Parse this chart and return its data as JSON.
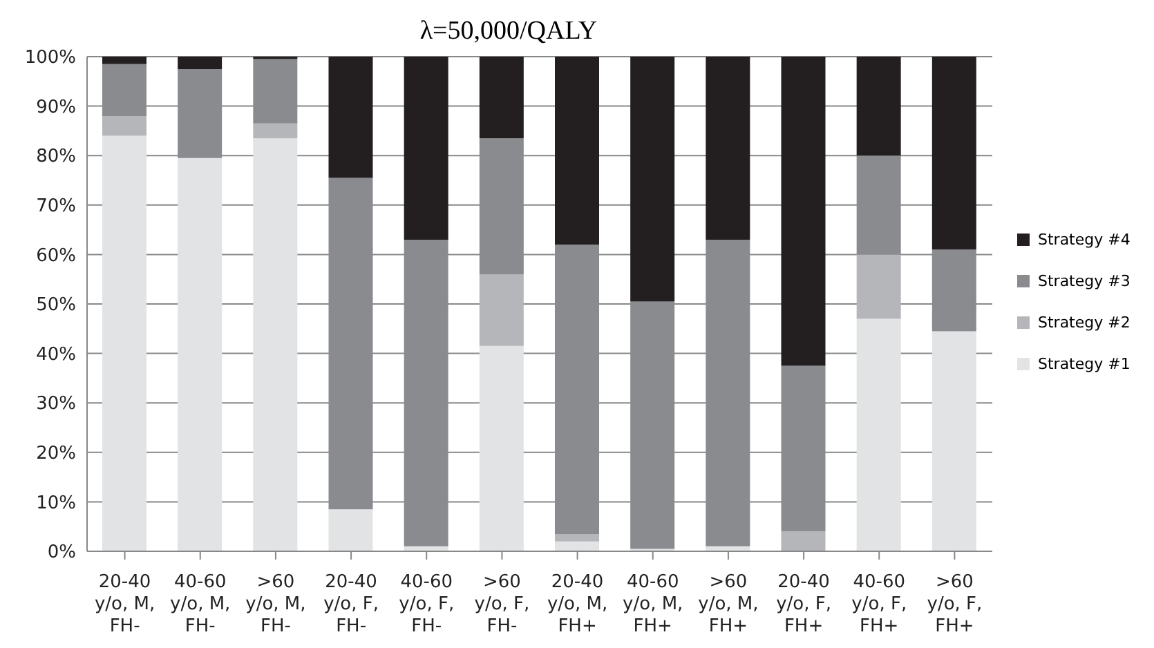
{
  "chart_data": {
    "type": "bar",
    "title": "λ=50,000/QALY",
    "stacked": true,
    "grid": "y",
    "legend": "right",
    "categories": [
      "20-40 y/o, M, FH-",
      "40-60 y/o, M, FH-",
      ">60 y/o, M, FH-",
      "20-40 y/o, F, FH-",
      "40-60 y/o, F, FH-",
      ">60 y/o, F, FH-",
      "20-40 y/o, M, FH+",
      "40-60 y/o, M, FH+",
      ">60 y/o, M, FH+",
      "20-40 y/o, F, FH+",
      "40-60 y/o, F, FH+",
      ">60 y/o, F, FH+"
    ],
    "ylim": [
      0,
      100
    ],
    "yticks": [
      {
        "value": 0,
        "label": "0%"
      },
      {
        "value": 10,
        "label": "10%"
      },
      {
        "value": 20,
        "label": "20%"
      },
      {
        "value": 30,
        "label": "30%"
      },
      {
        "value": 40,
        "label": "40%"
      },
      {
        "value": 50,
        "label": "50%"
      },
      {
        "value": 60,
        "label": "60%"
      },
      {
        "value": 70,
        "label": "70%"
      },
      {
        "value": 80,
        "label": "80%"
      },
      {
        "value": 90,
        "label": "90%"
      },
      {
        "value": 100,
        "label": "100%"
      }
    ],
    "series": [
      {
        "name": "Strategy #1",
        "color": "#e2e3e5",
        "values": [
          84,
          79.5,
          83.5,
          8.5,
          1,
          41.5,
          2,
          0.5,
          1,
          0,
          47,
          44.5
        ]
      },
      {
        "name": "Strategy #2",
        "color": "#b5b6b9",
        "values": [
          4,
          0,
          3,
          0,
          0,
          14.5,
          1.5,
          0,
          0,
          4,
          13,
          0
        ]
      },
      {
        "name": "Strategy #3",
        "color": "#8a8b8f",
        "values": [
          10.5,
          18,
          13,
          67,
          62,
          27.5,
          58.5,
          50,
          62,
          33.5,
          20,
          16.5
        ]
      },
      {
        "name": "Strategy #4",
        "color": "#231f20",
        "values": [
          1.5,
          2.5,
          0.5,
          24.5,
          37,
          16.5,
          38,
          49.5,
          37,
          62.5,
          20,
          39
        ]
      }
    ]
  }
}
